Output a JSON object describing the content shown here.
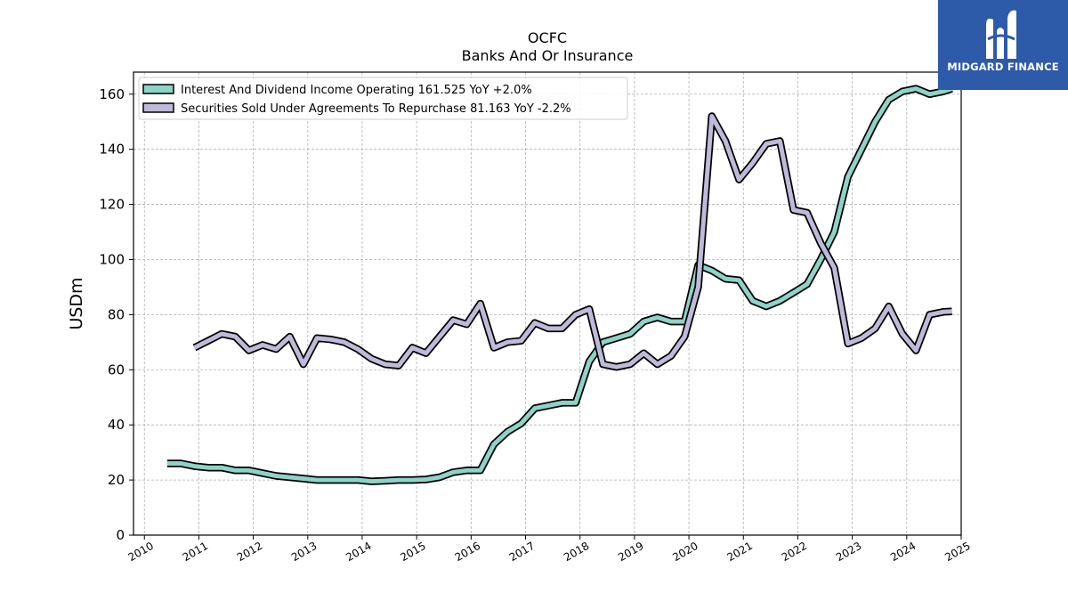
{
  "chart_data": {
    "type": "line",
    "title": "OCFC",
    "subtitle": "Banks And Or Insurance",
    "ylabel": "USDm",
    "xlabel": "",
    "ylim": [
      0,
      168
    ],
    "xlim": [
      2009.8,
      2025.0
    ],
    "yticks": [
      0,
      20,
      40,
      60,
      80,
      100,
      120,
      140,
      160
    ],
    "xticks": [
      "2010",
      "2011",
      "2012",
      "2013",
      "2014",
      "2015",
      "2016",
      "2017",
      "2018",
      "2019",
      "2020",
      "2021",
      "2022",
      "2023",
      "2024",
      "2025"
    ],
    "grid": true,
    "legend_position": "top-left",
    "series": [
      {
        "name": "Interest And Dividend Income Operating  161.525 YoY +2.0%",
        "color": "#8dd3c7",
        "x": [
          2010.42,
          2010.67,
          2010.92,
          2011.17,
          2011.42,
          2011.67,
          2011.92,
          2012.17,
          2012.42,
          2012.67,
          2012.92,
          2013.17,
          2013.42,
          2013.67,
          2013.92,
          2014.17,
          2014.42,
          2014.67,
          2014.92,
          2015.17,
          2015.42,
          2015.67,
          2015.92,
          2016.17,
          2016.42,
          2016.67,
          2016.92,
          2017.17,
          2017.42,
          2017.67,
          2017.92,
          2018.17,
          2018.42,
          2018.67,
          2018.92,
          2019.17,
          2019.42,
          2019.67,
          2019.92,
          2020.17,
          2020.42,
          2020.67,
          2020.92,
          2021.17,
          2021.42,
          2021.67,
          2021.92,
          2022.17,
          2022.42,
          2022.67,
          2022.92,
          2023.17,
          2023.42,
          2023.67,
          2023.92,
          2024.17,
          2024.42,
          2024.67,
          2024.83
        ],
        "y": [
          26,
          26,
          25,
          24.5,
          24.5,
          23.5,
          23.5,
          22.5,
          21.5,
          21,
          20.5,
          20,
          20,
          20,
          20,
          19.5,
          19.7,
          20,
          20,
          20.2,
          21,
          22.8,
          23.5,
          23.5,
          33,
          37.5,
          40.5,
          46,
          47,
          48,
          48,
          63,
          70,
          71.5,
          73,
          77.5,
          79,
          77.5,
          77.5,
          98,
          96,
          93,
          92.5,
          85,
          83,
          85,
          88,
          91,
          100,
          110,
          130,
          140,
          150,
          158,
          161,
          162,
          160,
          161,
          162
        ]
      },
      {
        "name": "Securities Sold Under Agreements To Repurchase  81.163 YoY -2.2%",
        "color": "#bebada",
        "x": [
          2010.92,
          2011.17,
          2011.42,
          2011.67,
          2011.92,
          2012.17,
          2012.42,
          2012.67,
          2012.92,
          2013.17,
          2013.42,
          2013.67,
          2013.92,
          2014.17,
          2014.42,
          2014.67,
          2014.92,
          2015.17,
          2015.42,
          2015.67,
          2015.92,
          2016.17,
          2016.42,
          2016.67,
          2016.92,
          2017.17,
          2017.42,
          2017.67,
          2017.92,
          2018.17,
          2018.42,
          2018.67,
          2018.92,
          2019.17,
          2019.42,
          2019.67,
          2019.92,
          2020.17,
          2020.42,
          2020.67,
          2020.92,
          2021.17,
          2021.42,
          2021.67,
          2021.92,
          2022.17,
          2022.42,
          2022.67,
          2022.92,
          2023.17,
          2023.42,
          2023.67,
          2023.92,
          2024.17,
          2024.42,
          2024.67,
          2024.83
        ],
        "y": [
          68,
          70.5,
          73,
          72,
          67,
          69,
          67.5,
          72,
          62,
          71.5,
          71,
          70,
          67.5,
          64,
          62,
          61.5,
          68,
          66,
          72,
          78,
          76.5,
          84,
          68,
          70,
          70.5,
          77,
          75,
          75,
          80,
          82,
          62,
          61,
          62,
          66,
          62,
          65,
          72,
          90,
          152,
          143,
          129,
          135,
          142,
          143,
          118,
          117,
          106,
          97,
          69.5,
          71.5,
          75,
          83,
          73,
          67,
          80,
          81,
          81.2
        ]
      }
    ]
  },
  "logo": {
    "text": "MIDGARD FINANCE"
  }
}
